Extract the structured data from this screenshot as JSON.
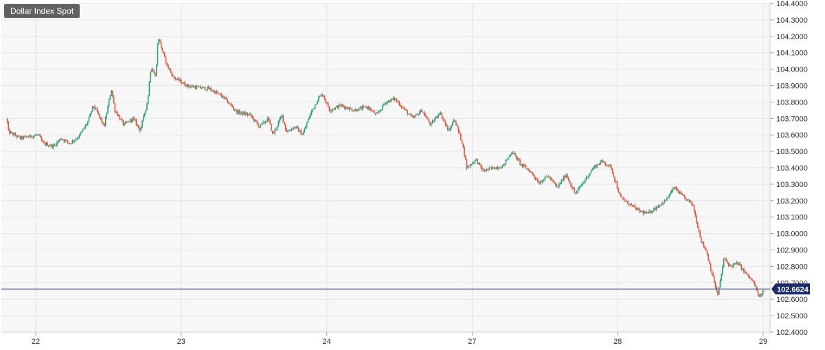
{
  "chart_data": {
    "type": "candlestick",
    "title": "Dollar Index Spot",
    "xlabel": "",
    "ylabel": "",
    "ylim": [
      102.4,
      104.4
    ],
    "y_ticks": [
      "104.4000",
      "104.3000",
      "104.2000",
      "104.1000",
      "104.0000",
      "103.9000",
      "103.8000",
      "103.7000",
      "103.6000",
      "103.5000",
      "103.4000",
      "103.3000",
      "103.2000",
      "103.1000",
      "103.0000",
      "102.9000",
      "102.8000",
      "102.7000",
      "102.6000",
      "102.5000",
      "102.4000"
    ],
    "x_ticks": [
      {
        "label": "22",
        "t": 0.4
      },
      {
        "label": "23",
        "t": 2.4
      },
      {
        "label": "24",
        "t": 4.4
      },
      {
        "label": "27",
        "t": 6.4
      },
      {
        "label": "28",
        "t": 8.4
      },
      {
        "label": "29",
        "t": 10.4
      }
    ],
    "last_price": 102.6624,
    "last_price_label": "102.6624",
    "colors": {
      "up": "#26a17a",
      "down": "#e0533a",
      "grid": "#e3e3ea",
      "plot_bg": "#f7f7f7",
      "price_line": "#1c2b6b",
      "label_bg": "#1c2b6b"
    },
    "path": [
      [
        0.0,
        103.7
      ],
      [
        0.02,
        103.62
      ],
      [
        0.15,
        103.58
      ],
      [
        0.35,
        103.6
      ],
      [
        0.4,
        103.55
      ],
      [
        0.52,
        103.53
      ],
      [
        0.6,
        103.58
      ],
      [
        0.7,
        103.55
      ],
      [
        0.8,
        103.59
      ],
      [
        0.9,
        103.68
      ],
      [
        0.96,
        103.78
      ],
      [
        1.02,
        103.72
      ],
      [
        1.08,
        103.65
      ],
      [
        1.16,
        103.88
      ],
      [
        1.2,
        103.75
      ],
      [
        1.3,
        103.66
      ],
      [
        1.4,
        103.7
      ],
      [
        1.48,
        103.63
      ],
      [
        1.56,
        103.8
      ],
      [
        1.6,
        104.02
      ],
      [
        1.65,
        103.95
      ],
      [
        1.68,
        104.2
      ],
      [
        1.72,
        104.12
      ],
      [
        1.78,
        104.02
      ],
      [
        1.85,
        103.95
      ],
      [
        2.0,
        103.9
      ],
      [
        2.1,
        103.89
      ],
      [
        2.25,
        103.88
      ],
      [
        2.4,
        103.83
      ],
      [
        2.55,
        103.74
      ],
      [
        2.7,
        103.72
      ],
      [
        2.8,
        103.65
      ],
      [
        2.9,
        103.7
      ],
      [
        2.95,
        103.6
      ],
      [
        3.05,
        103.72
      ],
      [
        3.1,
        103.62
      ],
      [
        3.2,
        103.65
      ],
      [
        3.28,
        103.6
      ],
      [
        3.36,
        103.72
      ],
      [
        3.45,
        103.82
      ],
      [
        3.5,
        103.85
      ],
      [
        3.58,
        103.75
      ],
      [
        3.7,
        103.78
      ],
      [
        3.85,
        103.75
      ],
      [
        4.0,
        103.77
      ],
      [
        4.1,
        103.72
      ],
      [
        4.2,
        103.8
      ],
      [
        4.3,
        103.82
      ],
      [
        4.4,
        103.76
      ],
      [
        4.5,
        103.7
      ],
      [
        4.6,
        103.75
      ],
      [
        4.7,
        103.66
      ],
      [
        4.8,
        103.74
      ],
      [
        4.9,
        103.62
      ],
      [
        4.96,
        103.7
      ],
      [
        5.05,
        103.55
      ],
      [
        5.1,
        103.4
      ],
      [
        5.2,
        103.45
      ],
      [
        5.28,
        103.38
      ],
      [
        5.4,
        103.4
      ],
      [
        5.5,
        103.41
      ],
      [
        5.6,
        103.5
      ],
      [
        5.7,
        103.42
      ],
      [
        5.8,
        103.38
      ],
      [
        5.9,
        103.31
      ],
      [
        6.0,
        103.35
      ],
      [
        6.1,
        103.28
      ],
      [
        6.2,
        103.36
      ],
      [
        6.3,
        103.24
      ],
      [
        6.4,
        103.32
      ],
      [
        6.5,
        103.4
      ],
      [
        6.6,
        103.44
      ],
      [
        6.7,
        103.4
      ],
      [
        6.8,
        103.22
      ],
      [
        6.9,
        103.18
      ],
      [
        7.0,
        103.14
      ],
      [
        7.1,
        103.12
      ],
      [
        7.2,
        103.16
      ],
      [
        7.3,
        103.2
      ],
      [
        7.4,
        103.28
      ],
      [
        7.5,
        103.22
      ],
      [
        7.6,
        103.18
      ],
      [
        7.7,
        102.95
      ],
      [
        7.75,
        102.9
      ],
      [
        7.82,
        102.75
      ],
      [
        7.88,
        102.62
      ],
      [
        7.95,
        102.85
      ],
      [
        8.02,
        102.8
      ],
      [
        8.1,
        102.82
      ],
      [
        8.2,
        102.75
      ],
      [
        8.28,
        102.7
      ],
      [
        8.34,
        102.61
      ],
      [
        8.4,
        102.66
      ]
    ]
  }
}
